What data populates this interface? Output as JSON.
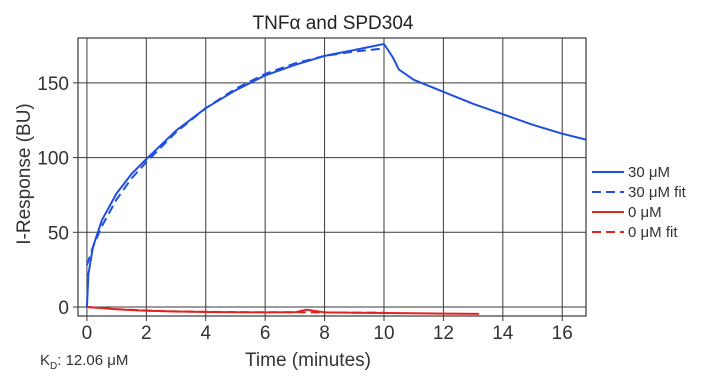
{
  "chart_data": {
    "type": "line",
    "title": "TNFα and SPD304",
    "xlabel": "Time (minutes)",
    "ylabel": "I-Response (BU)",
    "xlim": [
      -0.3,
      16.8
    ],
    "ylim": [
      -6,
      180
    ],
    "x_ticks": [
      0,
      2,
      4,
      6,
      8,
      10,
      12,
      14,
      16
    ],
    "y_ticks": [
      0,
      50,
      100,
      150
    ],
    "grid": true,
    "legend_position": "right",
    "series": [
      {
        "name": "30 μM",
        "color": "#1f4fe0",
        "dash": "solid",
        "x": [
          0,
          0.05,
          0.2,
          0.5,
          1,
          1.5,
          2,
          3,
          4,
          5,
          6,
          7,
          8,
          9,
          9.5,
          10,
          10.1,
          10.3,
          10.5,
          11,
          12,
          13,
          14,
          15,
          16,
          16.8
        ],
        "y": [
          0,
          22,
          40,
          58,
          76,
          89,
          99,
          118,
          133,
          145,
          155,
          162,
          168,
          172,
          174,
          176,
          173,
          167,
          159,
          152,
          144,
          136,
          129,
          122,
          116,
          112
        ]
      },
      {
        "name": "30 μM fit",
        "color": "#1f4fe0",
        "dash": "dashed",
        "x": [
          0,
          0.2,
          0.5,
          1,
          1.5,
          2,
          3,
          4,
          5,
          6,
          7,
          8,
          9,
          10
        ],
        "y": [
          28,
          40,
          54,
          72,
          86,
          97,
          117,
          133,
          146,
          156,
          163,
          168,
          171,
          173
        ]
      },
      {
        "name": "0 μM",
        "color": "#e02424",
        "dash": "solid",
        "x": [
          0,
          1,
          2,
          3,
          4,
          5,
          6,
          7,
          7.4,
          8,
          9,
          10,
          11,
          12,
          13.2
        ],
        "y": [
          0,
          -1.5,
          -2.5,
          -3,
          -3.3,
          -3.5,
          -3.6,
          -3.5,
          -1.8,
          -3.6,
          -3.8,
          -4,
          -4.2,
          -4.4,
          -4.6
        ]
      },
      {
        "name": "0 μM fit",
        "color": "#e02424",
        "dash": "dashed",
        "x": [
          0,
          1,
          2,
          3,
          4,
          5,
          6,
          7,
          8,
          9,
          10
        ],
        "y": [
          0,
          -1.4,
          -2.3,
          -2.9,
          -3.2,
          -3.4,
          -3.5,
          -3.5,
          -3.6,
          -3.7,
          -3.8
        ]
      }
    ]
  },
  "annotation": {
    "kd_prefix": "K",
    "kd_sub": "D",
    "kd_value": ": 12.06 μM"
  }
}
